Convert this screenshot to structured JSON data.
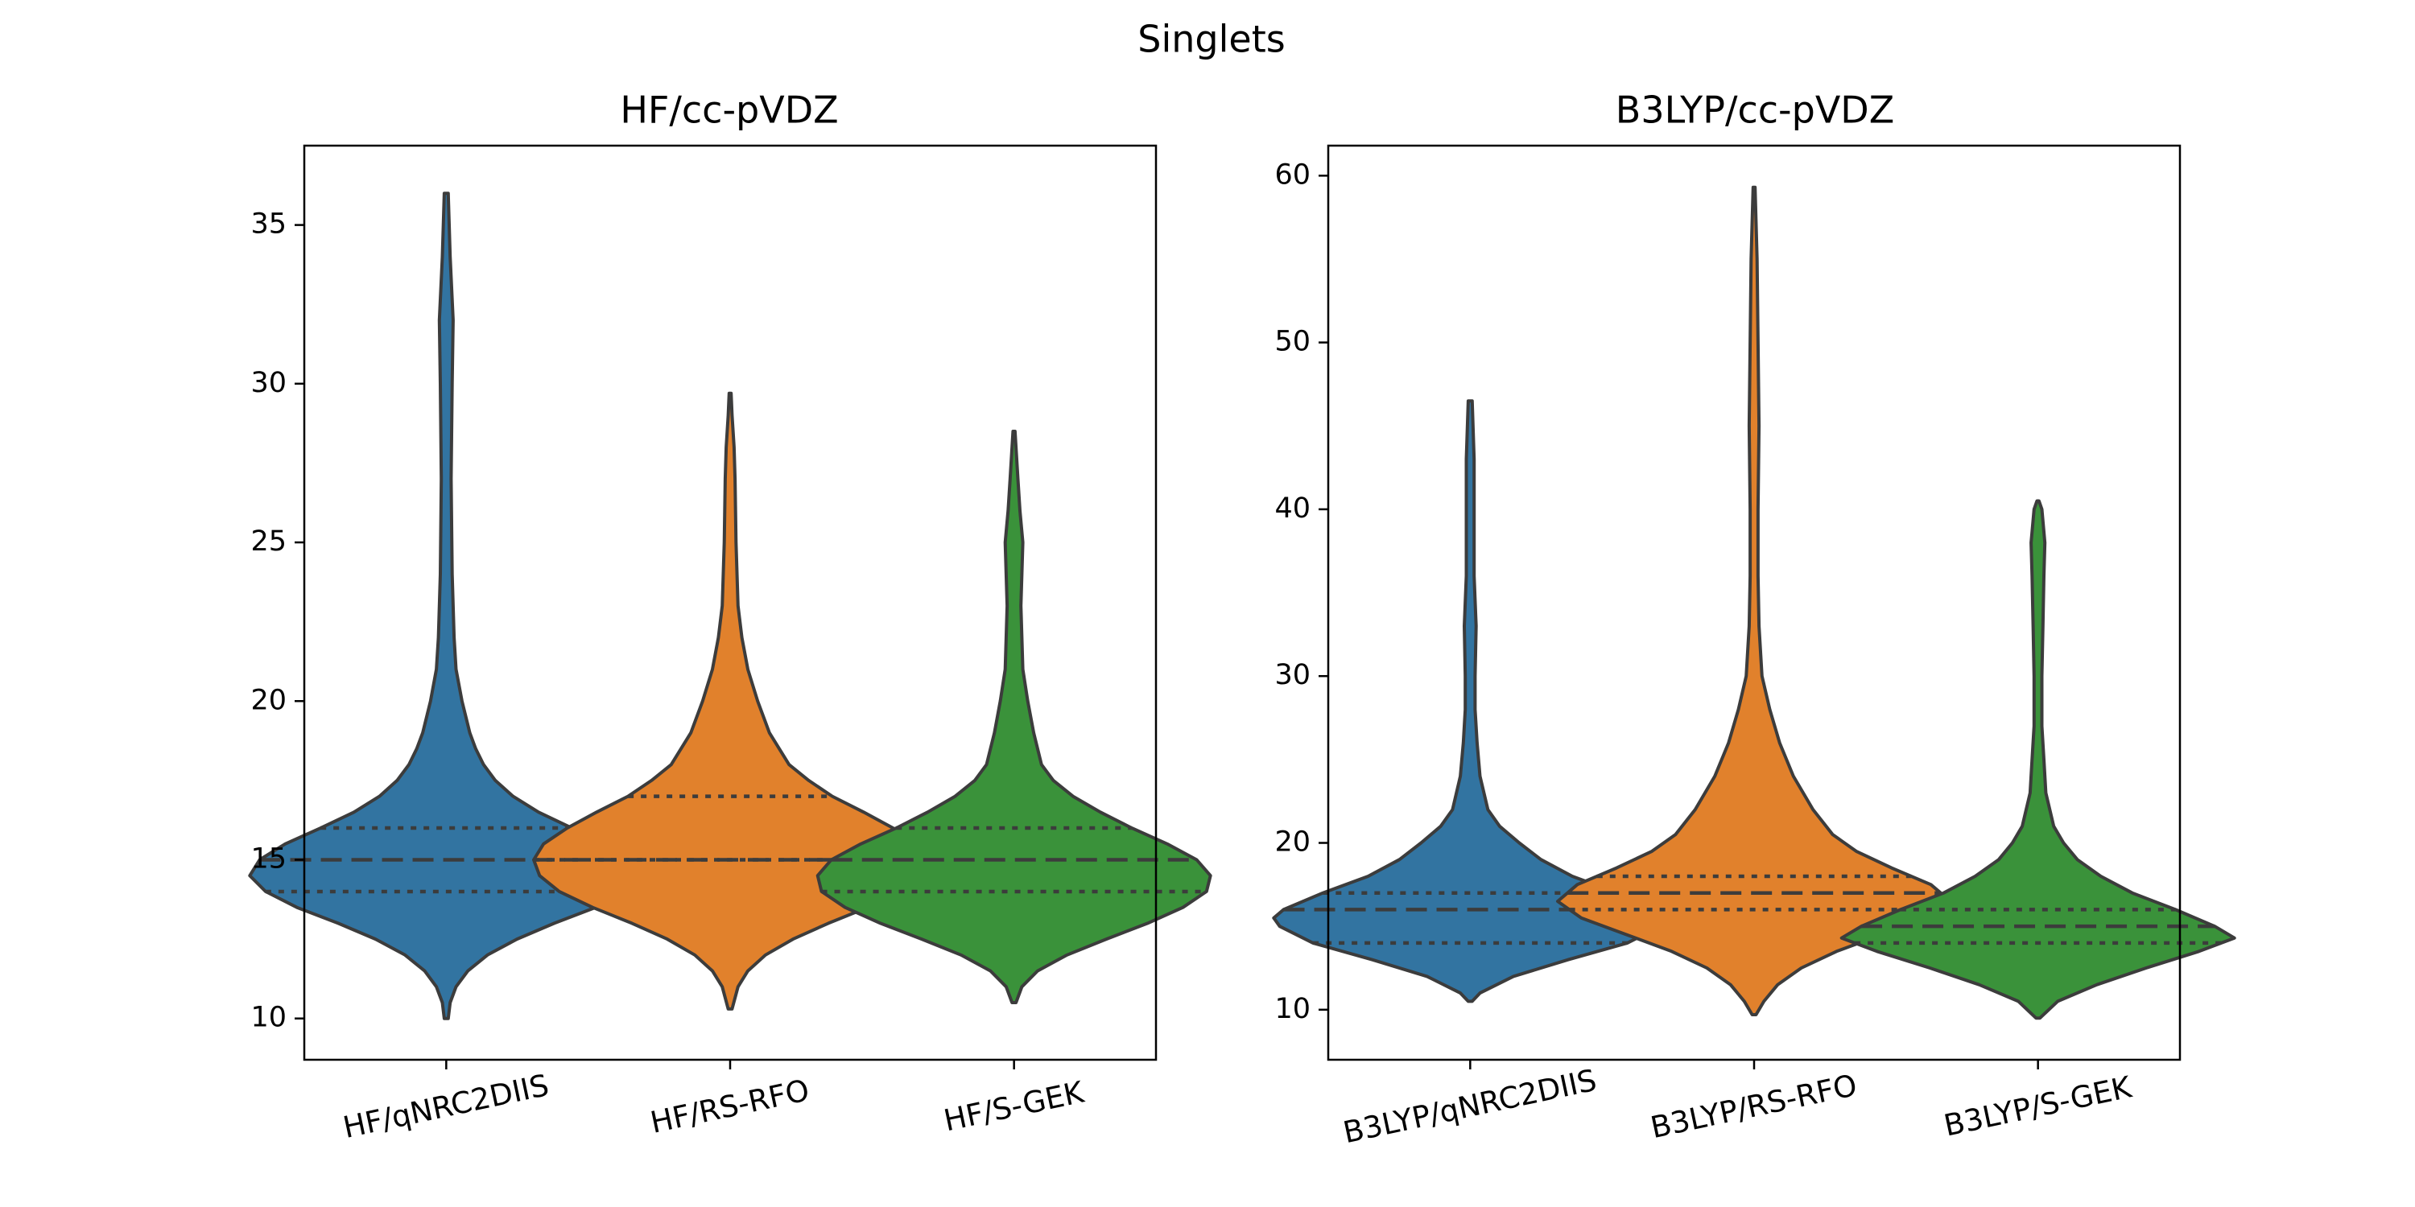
{
  "figure": {
    "title": "Singlets"
  },
  "chart_data": [
    {
      "type": "violin",
      "title": "HF/cc-pVDZ",
      "xlabel": "",
      "ylabel": "",
      "ylim": [
        8.7,
        37.5
      ],
      "yticks": [
        10,
        15,
        20,
        25,
        30,
        35
      ],
      "grid": false,
      "categories": [
        "HF/qNRC2DIIS",
        "HF/RS-RFO",
        "HF/S-GEK"
      ],
      "violins": [
        {
          "name": "HF/qNRC2DIIS",
          "color": "#3274a1",
          "min": 10,
          "max": 36,
          "q1": 14,
          "median": 15,
          "q3": 16,
          "density": [
            [
              10,
              0.01
            ],
            [
              10.5,
              0.02
            ],
            [
              11,
              0.05
            ],
            [
              11.5,
              0.11
            ],
            [
              12,
              0.21
            ],
            [
              12.5,
              0.36
            ],
            [
              13,
              0.55
            ],
            [
              13.5,
              0.76
            ],
            [
              14,
              0.92
            ],
            [
              14.5,
              1.0
            ],
            [
              15,
              0.95
            ],
            [
              15.5,
              0.82
            ],
            [
              16,
              0.64
            ],
            [
              16.5,
              0.47
            ],
            [
              17,
              0.34
            ],
            [
              17.5,
              0.25
            ],
            [
              18,
              0.19
            ],
            [
              18.5,
              0.15
            ],
            [
              19,
              0.12
            ],
            [
              20,
              0.08
            ],
            [
              21,
              0.05
            ],
            [
              22,
              0.04
            ],
            [
              24,
              0.03
            ],
            [
              27,
              0.025
            ],
            [
              30,
              0.03
            ],
            [
              32,
              0.035
            ],
            [
              34,
              0.02
            ],
            [
              36,
              0.01
            ]
          ]
        },
        {
          "name": "HF/RS-RFO",
          "color": "#e1812c",
          "min": 10.3,
          "max": 29.7,
          "q1": 15,
          "median": 15,
          "q3": 17,
          "density": [
            [
              10.3,
              0.01
            ],
            [
              11,
              0.04
            ],
            [
              11.5,
              0.09
            ],
            [
              12,
              0.18
            ],
            [
              12.5,
              0.32
            ],
            [
              13,
              0.5
            ],
            [
              13.5,
              0.7
            ],
            [
              14,
              0.87
            ],
            [
              14.5,
              0.97
            ],
            [
              15,
              1.0
            ],
            [
              15.5,
              0.95
            ],
            [
              16,
              0.83
            ],
            [
              16.5,
              0.68
            ],
            [
              17,
              0.52
            ],
            [
              17.5,
              0.4
            ],
            [
              18,
              0.3
            ],
            [
              19,
              0.2
            ],
            [
              20,
              0.14
            ],
            [
              21,
              0.09
            ],
            [
              22,
              0.06
            ],
            [
              23,
              0.04
            ],
            [
              25,
              0.03
            ],
            [
              27,
              0.025
            ],
            [
              28,
              0.02
            ],
            [
              29,
              0.01
            ],
            [
              29.7,
              0.005
            ]
          ]
        },
        {
          "name": "HF/S-GEK",
          "color": "#3a923a",
          "min": 10.5,
          "max": 28.5,
          "q1": 14,
          "median": 15,
          "q3": 16,
          "density": [
            [
              10.5,
              0.01
            ],
            [
              11,
              0.04
            ],
            [
              11.5,
              0.12
            ],
            [
              12,
              0.27
            ],
            [
              12.5,
              0.47
            ],
            [
              13,
              0.68
            ],
            [
              13.5,
              0.86
            ],
            [
              14,
              0.98
            ],
            [
              14.5,
              1.0
            ],
            [
              15,
              0.93
            ],
            [
              15.5,
              0.78
            ],
            [
              16,
              0.6
            ],
            [
              16.5,
              0.44
            ],
            [
              17,
              0.3
            ],
            [
              17.5,
              0.2
            ],
            [
              18,
              0.14
            ],
            [
              19,
              0.1
            ],
            [
              20,
              0.07
            ],
            [
              21,
              0.045
            ],
            [
              22,
              0.04
            ],
            [
              23,
              0.035
            ],
            [
              24,
              0.04
            ],
            [
              25,
              0.045
            ],
            [
              26,
              0.03
            ],
            [
              27,
              0.02
            ],
            [
              28.5,
              0.005
            ]
          ]
        }
      ]
    },
    {
      "type": "violin",
      "title": "B3LYP/cc-pVDZ",
      "xlabel": "",
      "ylabel": "",
      "ylim": [
        7,
        61.8
      ],
      "yticks": [
        10,
        20,
        30,
        40,
        50,
        60
      ],
      "grid": false,
      "categories": [
        "B3LYP/qNRC2DIIS",
        "B3LYP/RS-RFO",
        "B3LYP/S-GEK"
      ],
      "violins": [
        {
          "name": "B3LYP/qNRC2DIIS",
          "color": "#3274a1",
          "min": 10.5,
          "max": 46.5,
          "q1": 14,
          "median": 16,
          "q3": 17,
          "density": [
            [
              10.5,
              0.01
            ],
            [
              11,
              0.05
            ],
            [
              12,
              0.22
            ],
            [
              13,
              0.5
            ],
            [
              14,
              0.8
            ],
            [
              15,
              0.97
            ],
            [
              15.5,
              1.0
            ],
            [
              16,
              0.95
            ],
            [
              17,
              0.75
            ],
            [
              18,
              0.52
            ],
            [
              19,
              0.36
            ],
            [
              20,
              0.25
            ],
            [
              21,
              0.15
            ],
            [
              22,
              0.09
            ],
            [
              24,
              0.05
            ],
            [
              26,
              0.035
            ],
            [
              28,
              0.025
            ],
            [
              30,
              0.025
            ],
            [
              33,
              0.03
            ],
            [
              36,
              0.02
            ],
            [
              40,
              0.02
            ],
            [
              43,
              0.02
            ],
            [
              46.5,
              0.01
            ]
          ]
        },
        {
          "name": "B3LYP/RS-RFO",
          "color": "#e1812c",
          "min": 9.7,
          "max": 59.3,
          "q1": 16,
          "median": 17,
          "q3": 18,
          "density": [
            [
              9.7,
              0.01
            ],
            [
              10.5,
              0.05
            ],
            [
              11.5,
              0.12
            ],
            [
              12.5,
              0.24
            ],
            [
              13.5,
              0.42
            ],
            [
              14.5,
              0.65
            ],
            [
              15.5,
              0.88
            ],
            [
              16.5,
              1.0
            ],
            [
              17.5,
              0.9
            ],
            [
              18.5,
              0.7
            ],
            [
              19.5,
              0.52
            ],
            [
              20.5,
              0.4
            ],
            [
              22,
              0.3
            ],
            [
              24,
              0.2
            ],
            [
              26,
              0.13
            ],
            [
              28,
              0.08
            ],
            [
              30,
              0.04
            ],
            [
              33,
              0.025
            ],
            [
              36,
              0.02
            ],
            [
              40,
              0.02
            ],
            [
              45,
              0.025
            ],
            [
              50,
              0.02
            ],
            [
              55,
              0.015
            ],
            [
              59.3,
              0.005
            ]
          ]
        },
        {
          "name": "B3LYP/S-GEK",
          "color": "#3a923a",
          "min": 9.5,
          "max": 40.5,
          "q1": 14,
          "median": 15,
          "q3": 16,
          "density": [
            [
              9.5,
              0.01
            ],
            [
              10.5,
              0.1
            ],
            [
              11.5,
              0.3
            ],
            [
              12.5,
              0.55
            ],
            [
              13.5,
              0.82
            ],
            [
              14.3,
              1.0
            ],
            [
              15,
              0.9
            ],
            [
              16,
              0.7
            ],
            [
              17,
              0.48
            ],
            [
              18,
              0.32
            ],
            [
              19,
              0.2
            ],
            [
              20,
              0.13
            ],
            [
              21,
              0.08
            ],
            [
              23,
              0.04
            ],
            [
              25,
              0.03
            ],
            [
              27,
              0.02
            ],
            [
              30,
              0.02
            ],
            [
              33,
              0.025
            ],
            [
              36,
              0.03
            ],
            [
              38,
              0.035
            ],
            [
              40,
              0.02
            ],
            [
              40.5,
              0.005
            ]
          ]
        }
      ]
    }
  ]
}
